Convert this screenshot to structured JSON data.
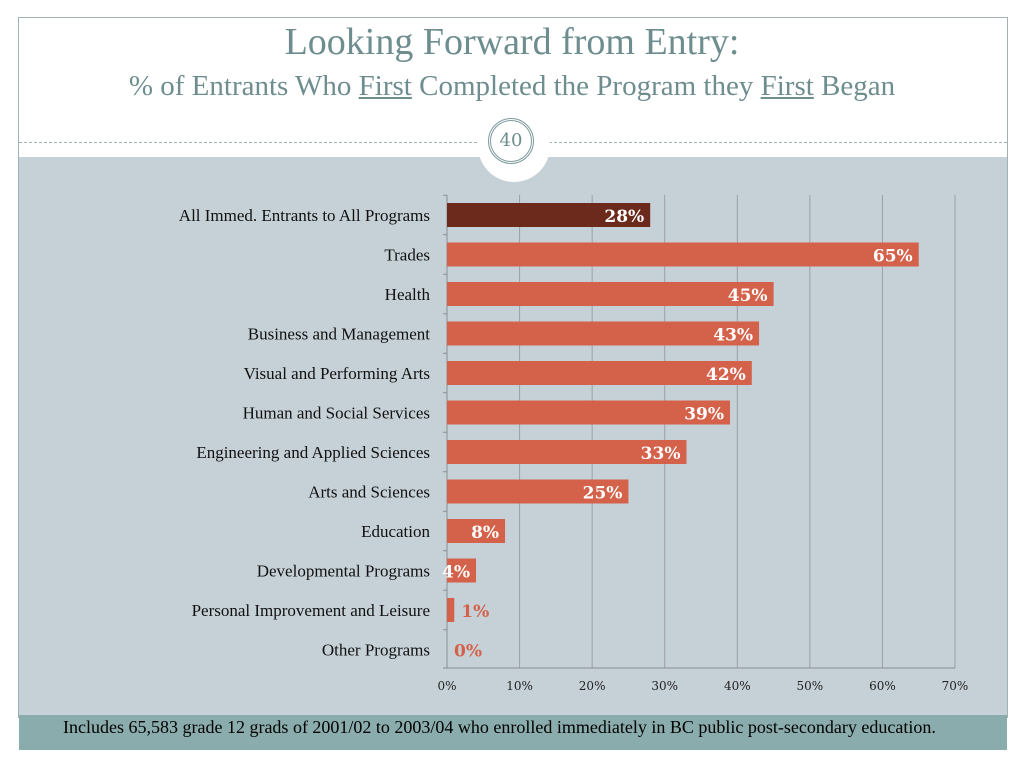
{
  "header": {
    "title": "Looking Forward from Entry:",
    "subtitle_parts": [
      "% of Entrants Who ",
      "First",
      " Completed the Program they ",
      "First",
      " Began"
    ],
    "page_number": "40"
  },
  "footer": {
    "note": "Includes 65,583 grade 12 grads of 2001/02 to 2003/04 who enrolled immediately in BC public post-secondary education."
  },
  "chart_data": {
    "type": "bar",
    "orientation": "horizontal",
    "categories": [
      "All Immed. Entrants to All Programs",
      "Trades",
      "Health",
      "Business and Management",
      "Visual and Performing Arts",
      "Human and Social Services",
      "Engineering and Applied Sciences",
      "Arts and Sciences",
      "Education",
      "Developmental Programs",
      "Personal Improvement and Leisure",
      "Other Programs"
    ],
    "values": [
      28,
      65,
      45,
      43,
      42,
      39,
      33,
      25,
      8,
      4,
      1,
      0
    ],
    "data_labels": [
      "28%",
      "65%",
      "45%",
      "43%",
      "42%",
      "39%",
      "33%",
      "25%",
      "8%",
      "4%",
      "1%",
      "0%"
    ],
    "xlim": [
      0,
      70
    ],
    "x_ticks": [
      "0%",
      "10%",
      "20%",
      "30%",
      "40%",
      "50%",
      "60%",
      "70%"
    ],
    "grid": true,
    "colors": {
      "highlight": "#6b2a1c",
      "bar": "#d4614a",
      "label_outside": "#d4614a",
      "label_inside": "#ffffff"
    }
  }
}
